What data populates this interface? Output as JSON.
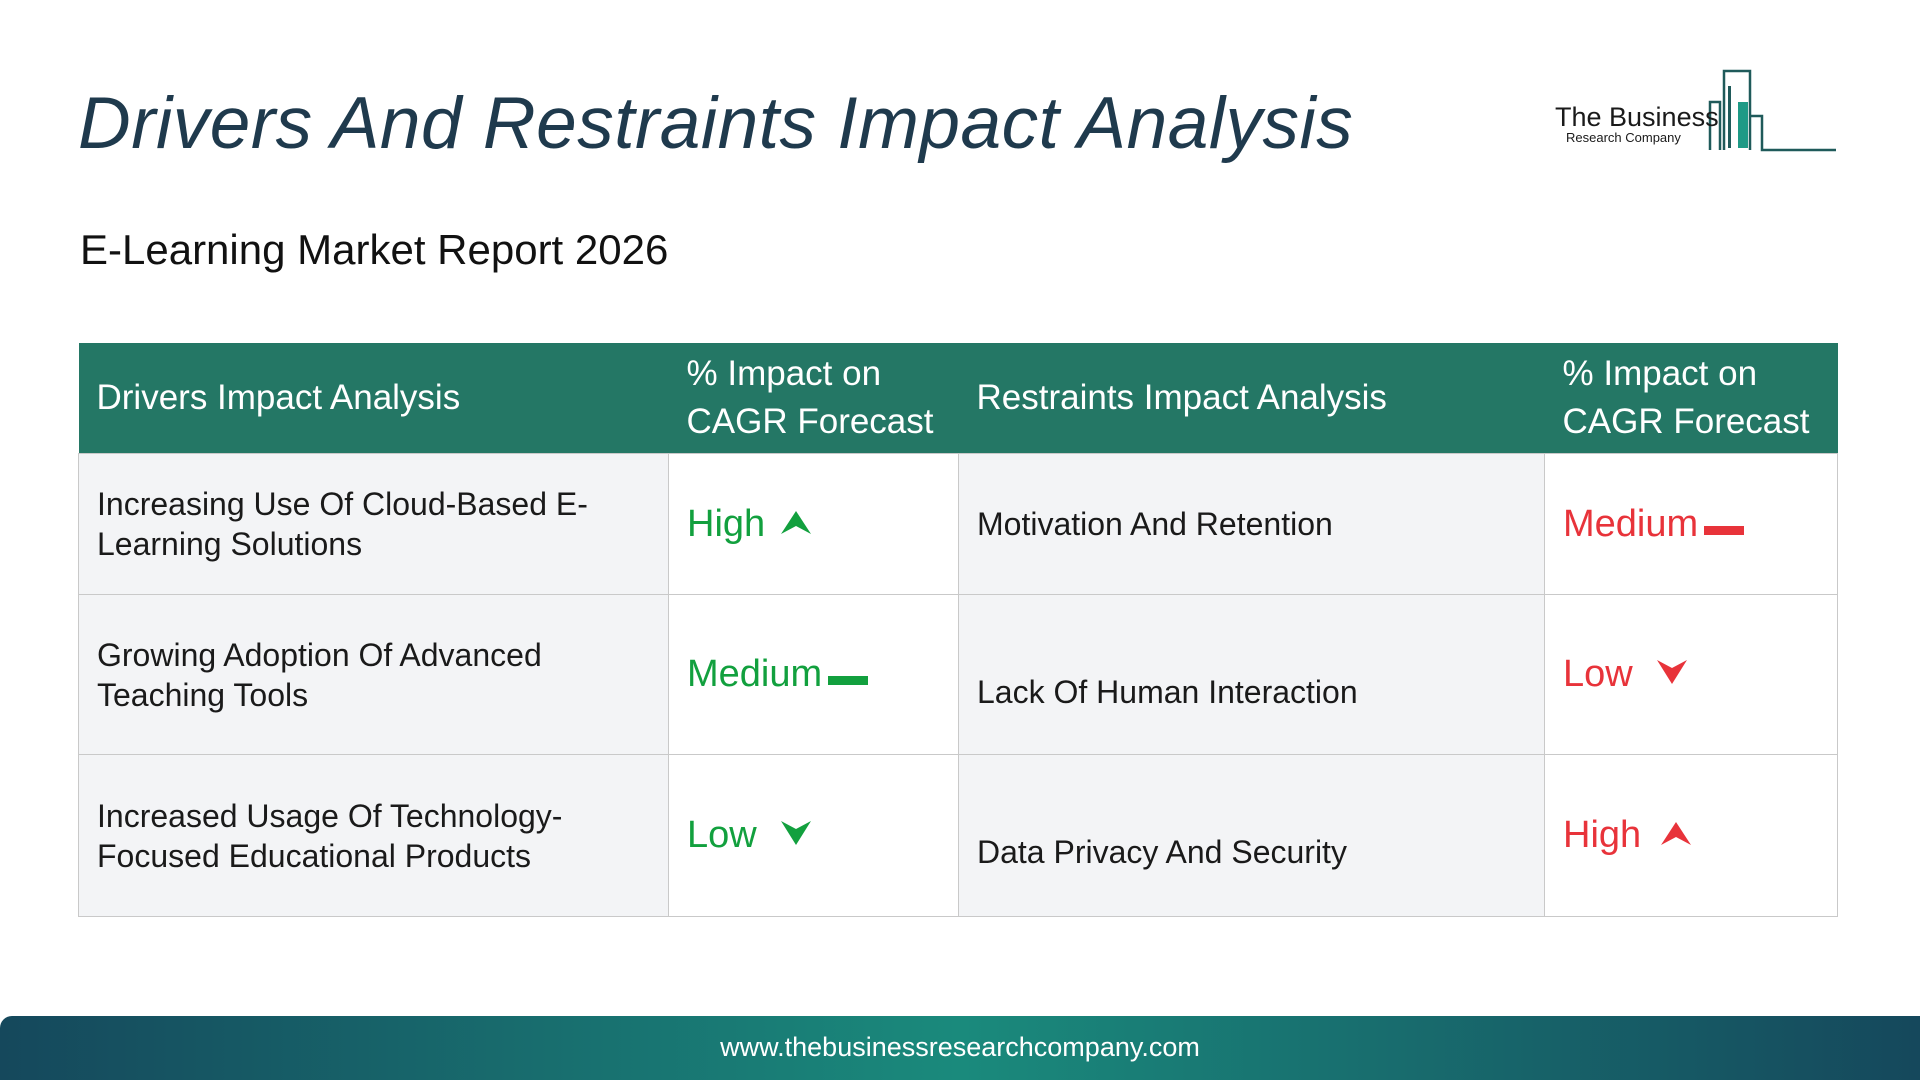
{
  "title": "Drivers And Restraints Impact Analysis",
  "subtitle": "E-Learning Market Report 2026",
  "logo": {
    "name": "The Business",
    "tagline": "Research Company"
  },
  "table": {
    "headers": {
      "drivers": "Drivers Impact Analysis",
      "driver_impact_line1": "% Impact on",
      "driver_impact_line2": "CAGR Forecast",
      "restraints": "Restraints Impact Analysis",
      "restraint_impact_line1": "% Impact on",
      "restraint_impact_line2": "CAGR Forecast"
    },
    "rows": [
      {
        "driver": "Increasing Use Of Cloud-Based E-Learning Solutions",
        "driver_impact": "High",
        "driver_icon": "arrow-up-icon",
        "restraint": "Motivation And Retention",
        "restraint_impact": "Medium",
        "restraint_icon": "dash-icon"
      },
      {
        "driver": "Growing Adoption Of Advanced Teaching Tools",
        "driver_impact": "Medium",
        "driver_icon": "dash-icon",
        "restraint": "Lack Of Human Interaction",
        "restraint_impact": "Low",
        "restraint_icon": "arrow-down-icon"
      },
      {
        "driver": "Increased Usage Of Technology-Focused Educational Products",
        "driver_impact": "Low",
        "driver_icon": "arrow-down-icon",
        "restraint": "Data Privacy And Security",
        "restraint_impact": "High",
        "restraint_icon": "arrow-up-icon"
      }
    ]
  },
  "colors": {
    "header_bg": "#247765",
    "driver_level": "#12a03e",
    "restraint_level": "#e8333a",
    "title": "#1f3a4d"
  },
  "footer": {
    "url": "www.thebusinessresearchcompany.com"
  }
}
